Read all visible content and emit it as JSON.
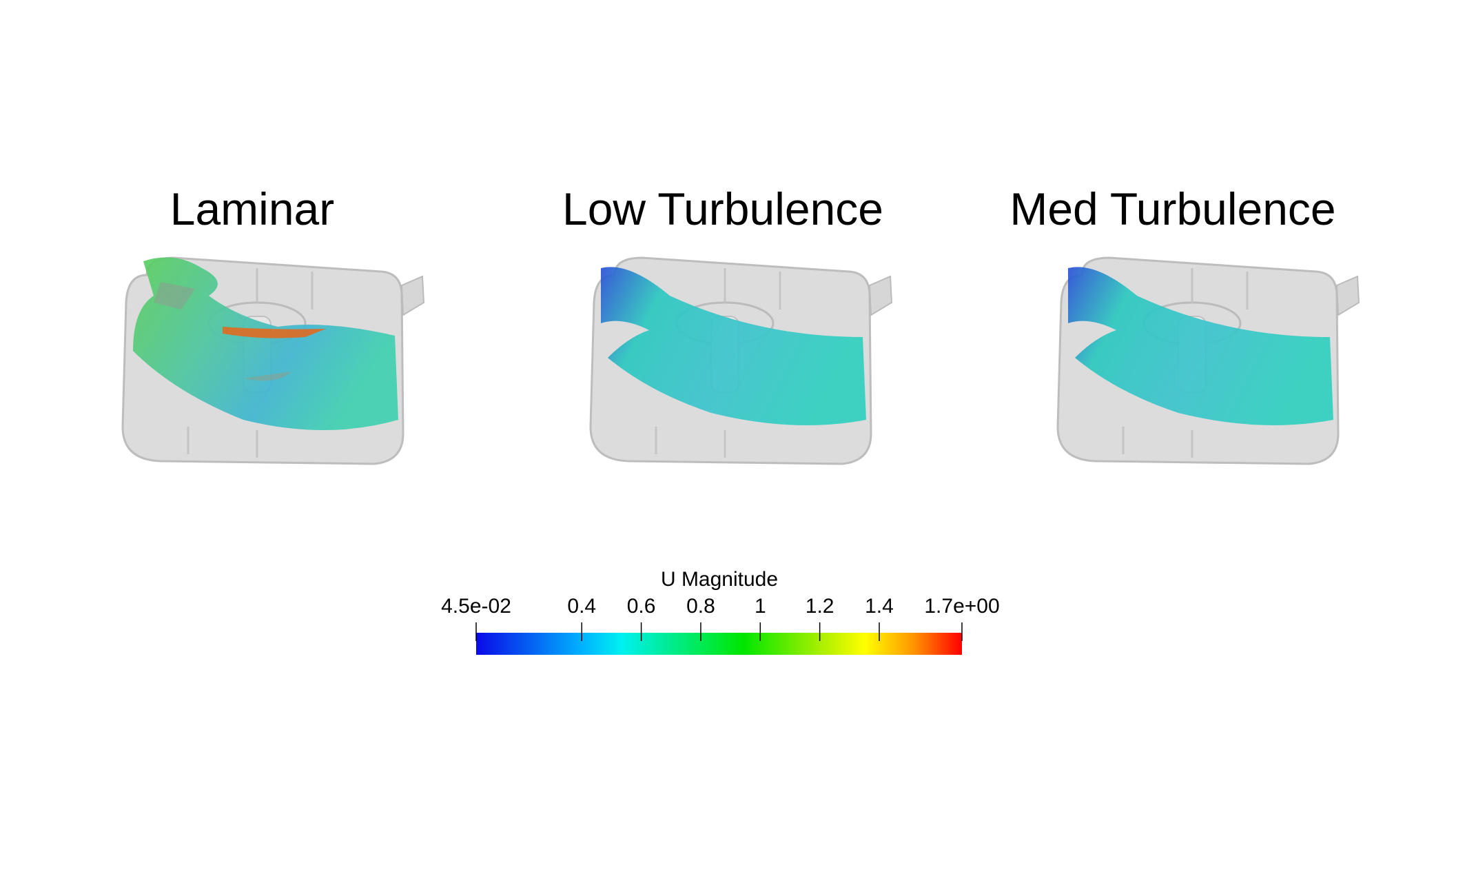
{
  "panels": [
    {
      "title": "Laminar"
    },
    {
      "title": "Low Turbulence"
    },
    {
      "title": "Med Turbulence"
    }
  ],
  "colorbar": {
    "title": "U Magnitude",
    "clim": [
      0.045,
      1.678
    ],
    "ticks": [
      {
        "value": 0.045,
        "label": "4.5e-02"
      },
      0.4,
      0.6,
      0.8,
      1,
      1.2,
      1.4,
      {
        "value": 1.678,
        "label": "1.7e+00"
      }
    ]
  }
}
